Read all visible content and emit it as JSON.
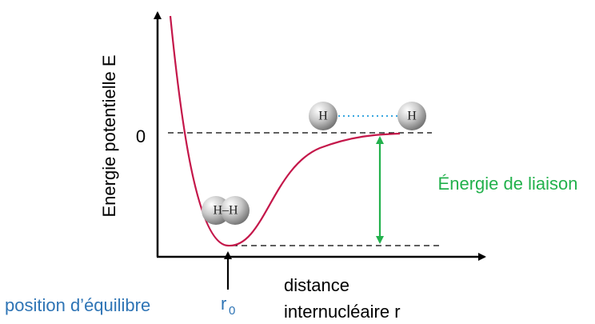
{
  "diagram": {
    "y_axis_label": "Energie potentielle E",
    "zero_label": "0",
    "bond_energy_label": "Énergie de liaison",
    "x_axis_label_line1": "distance",
    "x_axis_label_line2": "internucléaire r",
    "equilibrium_label": "position d’équilibre",
    "r0_symbol": "r",
    "r0_subscript": "0",
    "separated_atom_1": "H",
    "separated_atom_2": "H",
    "molecule_label": "H–H"
  }
}
